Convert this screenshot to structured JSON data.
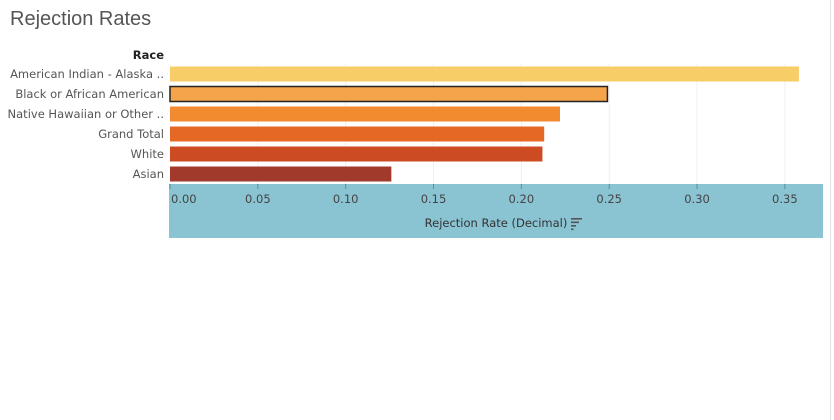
{
  "title": "Rejection Rates",
  "colors": {
    "axis_band": "#8ac3d2",
    "bars": [
      "#f6cd66",
      "#f6a44a",
      "#f28a30",
      "#e56824",
      "#cd4b22",
      "#a13a2a"
    ],
    "selected_outline": "#222222"
  },
  "chart_data": {
    "type": "bar",
    "orientation": "horizontal",
    "row_header": "Race",
    "categories": [
      "American Indian - Alaska ..",
      "Black or African American",
      "Native Hawaiian or Other ..",
      "Grand Total",
      "White",
      "Asian"
    ],
    "values": [
      0.358,
      0.249,
      0.222,
      0.213,
      0.212,
      0.126
    ],
    "selected_index": 1,
    "xlabel": "Rejection Rate (Decimal)",
    "xlim": [
      0,
      0.37
    ],
    "xticks": [
      0,
      0.05,
      0.1,
      0.15,
      0.2,
      0.25,
      0.3,
      0.35
    ],
    "xtick_labels": [
      "0.00",
      "0.05",
      "0.10",
      "0.15",
      "0.20",
      "0.25",
      "0.30",
      "0.35"
    ],
    "grid": true,
    "sort_icon": "sort-descending-icon"
  }
}
